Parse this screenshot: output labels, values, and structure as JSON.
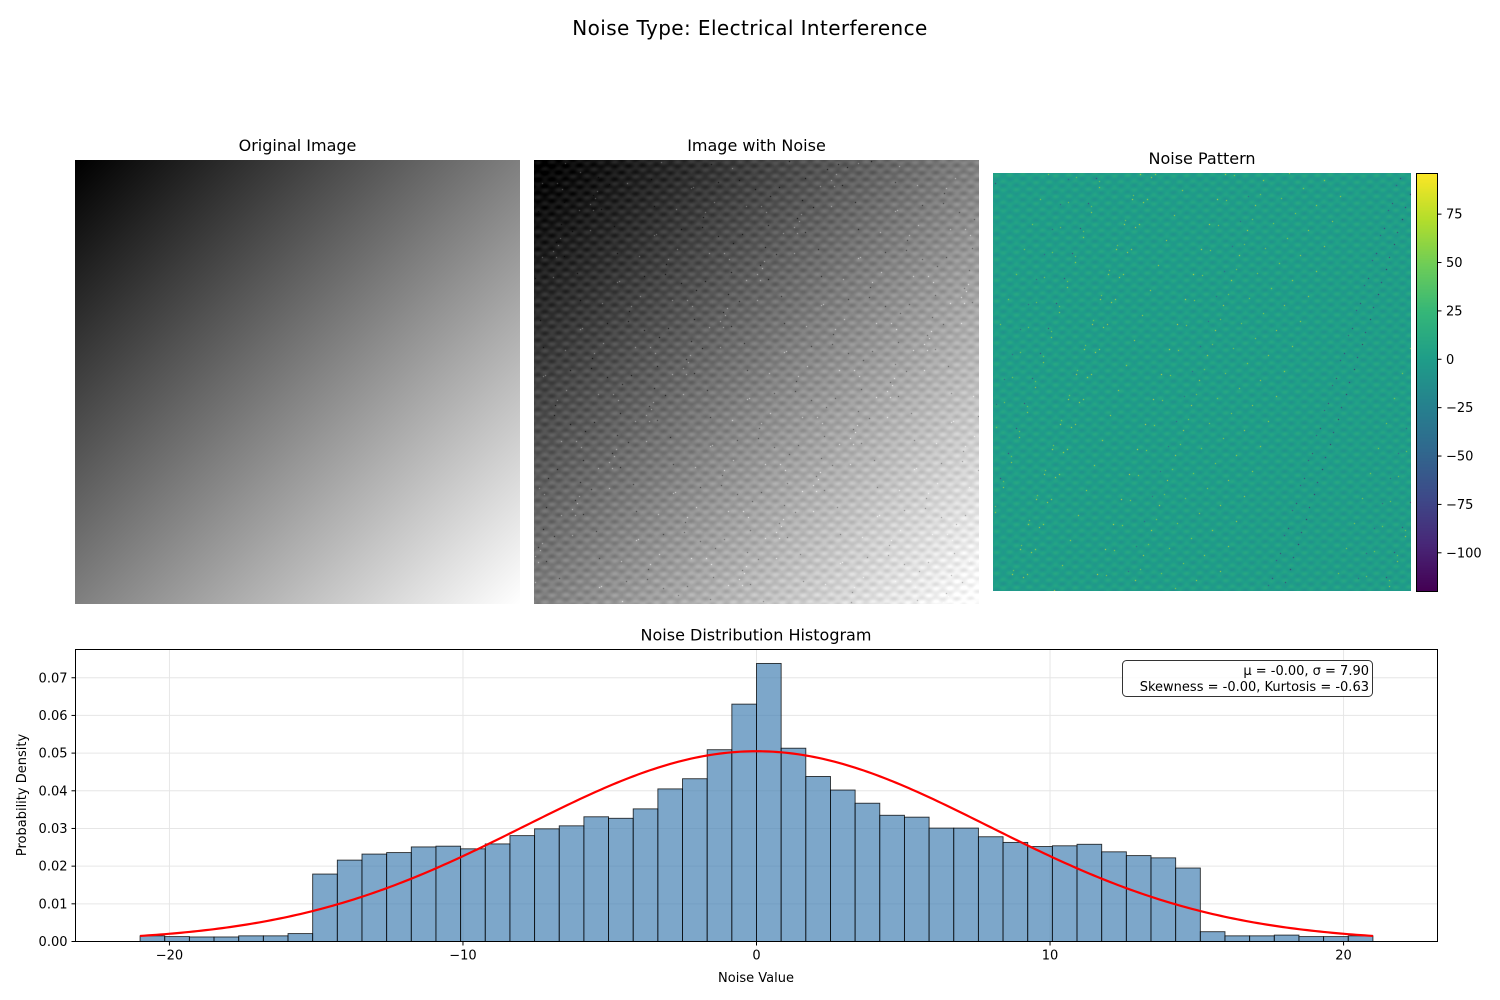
{
  "figure": {
    "suptitle": "Noise Type: Electrical Interference"
  },
  "panels": {
    "original_title": "Original Image",
    "noisy_title": "Image with Noise",
    "pattern_title": "Noise Pattern"
  },
  "colorbar": {
    "colormap": "viridis",
    "range": [
      -120,
      96
    ],
    "ticks": [
      75,
      50,
      25,
      0,
      -25,
      -50,
      -75,
      -100
    ],
    "tick_labels": [
      "75",
      "50",
      "25",
      "0",
      "−25",
      "−50",
      "−75",
      "−100"
    ]
  },
  "chart_data": {
    "type": "bar",
    "title": "Noise Distribution Histogram",
    "xlabel": "Noise Value",
    "ylabel": "Probability Density",
    "xlim": [
      -23.2,
      23.2
    ],
    "ylim": [
      0,
      0.0775
    ],
    "xticks": [
      -20,
      -10,
      0,
      10,
      20
    ],
    "xtick_labels": [
      "−20",
      "−10",
      "0",
      "10",
      "20"
    ],
    "yticks": [
      0,
      0.01,
      0.02,
      0.03,
      0.04,
      0.05,
      0.06,
      0.07
    ],
    "ytick_labels": [
      "0.00",
      "0.01",
      "0.02",
      "0.03",
      "0.04",
      "0.05",
      "0.06",
      "0.07"
    ],
    "grid": true,
    "bar_color": "#4682b4",
    "bin_edges_start": -21.0,
    "bin_width": 0.84,
    "values": [
      0.0015,
      0.0013,
      0.0012,
      0.0012,
      0.0015,
      0.0015,
      0.0021,
      0.0179,
      0.0216,
      0.0232,
      0.0236,
      0.0251,
      0.0253,
      0.0246,
      0.0259,
      0.0281,
      0.0299,
      0.0307,
      0.0331,
      0.0327,
      0.0352,
      0.0405,
      0.0432,
      0.0509,
      0.063,
      0.0738,
      0.0513,
      0.0438,
      0.0402,
      0.0367,
      0.0335,
      0.033,
      0.0301,
      0.0301,
      0.0278,
      0.0263,
      0.0252,
      0.0254,
      0.0258,
      0.0238,
      0.0228,
      0.0222,
      0.0195,
      0.0026,
      0.0015,
      0.0015,
      0.0017,
      0.0013,
      0.0013,
      0.0015
    ],
    "fit_curve": {
      "type": "normal",
      "mu": 0.0,
      "sigma": 7.9,
      "x_range": [
        -21.0,
        21.0
      ],
      "color": "#ff0000"
    },
    "annotation_lines": [
      "μ = -0.00, σ = 7.90",
      "Skewness = -0.00, Kurtosis = -0.63"
    ]
  }
}
